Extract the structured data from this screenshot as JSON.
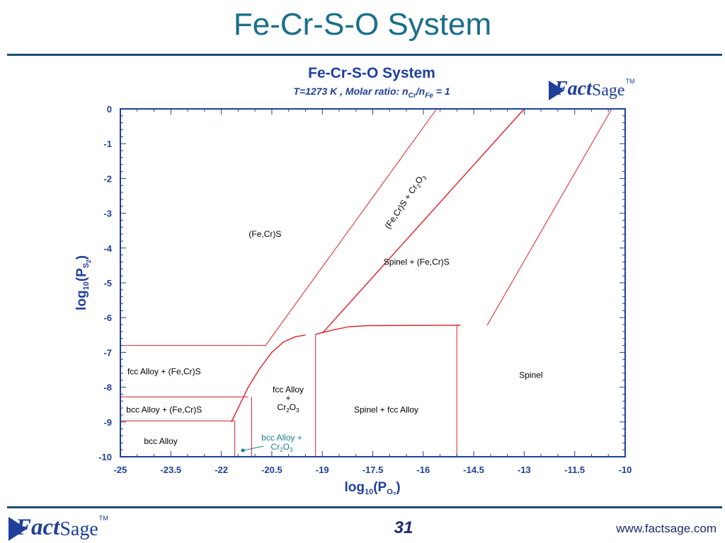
{
  "slide": {
    "title": "Fe-Cr-S-O System",
    "page_number": "31",
    "website": "www.factsage.com",
    "accent_color": "#1a6e8a",
    "rule_color": "#1c4e74"
  },
  "logo": {
    "part1": "Fact",
    "part2": "Sage",
    "tm": "TM"
  },
  "chart_data": {
    "type": "phase-diagram",
    "title": "Fe-Cr-S-O System",
    "subtitle": "T=1273 K ,      Molar ratio:  n Cr/nFe = 1",
    "subtitle_parts": {
      "prefix": "T=1273 K ,      Molar ratio:  n",
      "sub1": "Cr",
      "mid": "/n",
      "sub2": "Fe",
      "suffix": " = 1"
    },
    "xlabel": {
      "base": "log",
      "sub": "10",
      "open": "(P",
      "inner_sub": "O",
      "inner_sub2": "2",
      "close": ")"
    },
    "ylabel": {
      "base": "log",
      "sub": "10",
      "open": "(P",
      "inner_sub": "S",
      "inner_sub2": "2",
      "close": ")"
    },
    "xlim": [
      -25,
      -10
    ],
    "ylim": [
      -10,
      0
    ],
    "xticks": [
      "-25",
      "-23.5",
      "-22",
      "-20.5",
      "-19",
      "-17.5",
      "-16",
      "-14.5",
      "-13",
      "-11.5",
      "-10"
    ],
    "yticks": [
      "0",
      "-1",
      "-2",
      "-3",
      "-4",
      "-5",
      "-6",
      "-7",
      "-8",
      "-9",
      "-10"
    ],
    "line_color": "#dd1f26",
    "boundaries": [
      {
        "name": "fe-cr-s-left-diagonal",
        "points": [
          [
            -20.7,
            -6.82
          ],
          [
            -15.6,
            0
          ]
        ]
      },
      {
        "name": "spinel-fecrs-diagonal",
        "points": [
          [
            -19.0,
            -6.45
          ],
          [
            -13.0,
            0
          ]
        ]
      },
      {
        "name": "spinel-right-diagonal",
        "points": [
          [
            -14.1,
            -6.22
          ],
          [
            -10.4,
            0
          ]
        ]
      },
      {
        "name": "fcc-cr2o3-curve",
        "points": [
          [
            -21.7,
            -9.0
          ],
          [
            -21.5,
            -8.6
          ],
          [
            -21.2,
            -8.0
          ],
          [
            -20.85,
            -7.45
          ],
          [
            -20.5,
            -7.0
          ],
          [
            -20.15,
            -6.7
          ],
          [
            -19.8,
            -6.55
          ],
          [
            -19.5,
            -6.5
          ]
        ]
      },
      {
        "name": "spinel-shoulder-curve",
        "points": [
          [
            -19.2,
            -6.48
          ],
          [
            -18.7,
            -6.36
          ],
          [
            -18.2,
            -6.26
          ],
          [
            -17.6,
            -6.23
          ],
          [
            -14.9,
            -6.22
          ]
        ]
      },
      {
        "name": "fcc-fecrs-horizontal",
        "points": [
          [
            -25,
            -6.8
          ],
          [
            -20.7,
            -6.8
          ]
        ]
      },
      {
        "name": "fcc-bcc-horizontal-upper",
        "points": [
          [
            -25,
            -8.28
          ],
          [
            -21.2,
            -8.28
          ]
        ]
      },
      {
        "name": "bcc-horizontal-lower",
        "points": [
          [
            -25,
            -8.97
          ],
          [
            -21.6,
            -8.97
          ]
        ]
      },
      {
        "name": "bcc-vertical-left",
        "points": [
          [
            -21.6,
            -10
          ],
          [
            -21.6,
            -8.97
          ]
        ]
      },
      {
        "name": "fcc-vertical",
        "points": [
          [
            -21.1,
            -10
          ],
          [
            -21.1,
            -8.28
          ]
        ]
      },
      {
        "name": "fcc-spinel-vertical",
        "points": [
          [
            -19.2,
            -10
          ],
          [
            -19.2,
            -6.48
          ]
        ]
      },
      {
        "name": "spinel-vertical-right",
        "points": [
          [
            -15.0,
            -10
          ],
          [
            -15.0,
            -6.22
          ]
        ]
      }
    ],
    "regions": [
      {
        "name": "region-fecrs",
        "lines": [
          "(Fe,Cr)S"
        ],
        "x": -20.7,
        "y": -3.6
      },
      {
        "name": "region-spinel-fecrs",
        "lines": [
          "Spinel + (Fe,Cr)S"
        ],
        "x": -16.2,
        "y": -4.4
      },
      {
        "name": "region-spinel",
        "lines": [
          "Spinel"
        ],
        "x": -12.8,
        "y": -7.65
      },
      {
        "name": "region-fcc-fecrs",
        "lines": [
          "fcc Alloy + (Fe,Cr)S"
        ],
        "x": -23.7,
        "y": -7.55
      },
      {
        "name": "region-bcc-fecrs",
        "lines": [
          "bcc Alloy + (Fe,Cr)S"
        ],
        "x": -23.7,
        "y": -8.65
      },
      {
        "name": "region-bcc",
        "lines": [
          "bcc Alloy"
        ],
        "x": -23.8,
        "y": -9.55
      },
      {
        "name": "region-spinel-fcc",
        "lines": [
          "Spinel + fcc Alloy"
        ],
        "x": -17.1,
        "y": -8.65
      }
    ],
    "labels": {
      "fcc_cr2o3": {
        "line1": "fcc Alloy",
        "line2": "+",
        "line3_base": "Cr",
        "sub_a": "2",
        "line3_mid": "O",
        "sub_b": "3"
      },
      "bcc_cr2o3": {
        "line1": "bcc Alloy +",
        "line2_base": "Cr",
        "sub_a": "2",
        "line2_mid": "O",
        "sub_b": "3",
        "color": "#1a7f8a"
      },
      "diagonal": {
        "base": "(Fe,Cr)S + Cr",
        "sub_a": "2",
        "mid": "O",
        "sub_b": "3"
      }
    }
  }
}
